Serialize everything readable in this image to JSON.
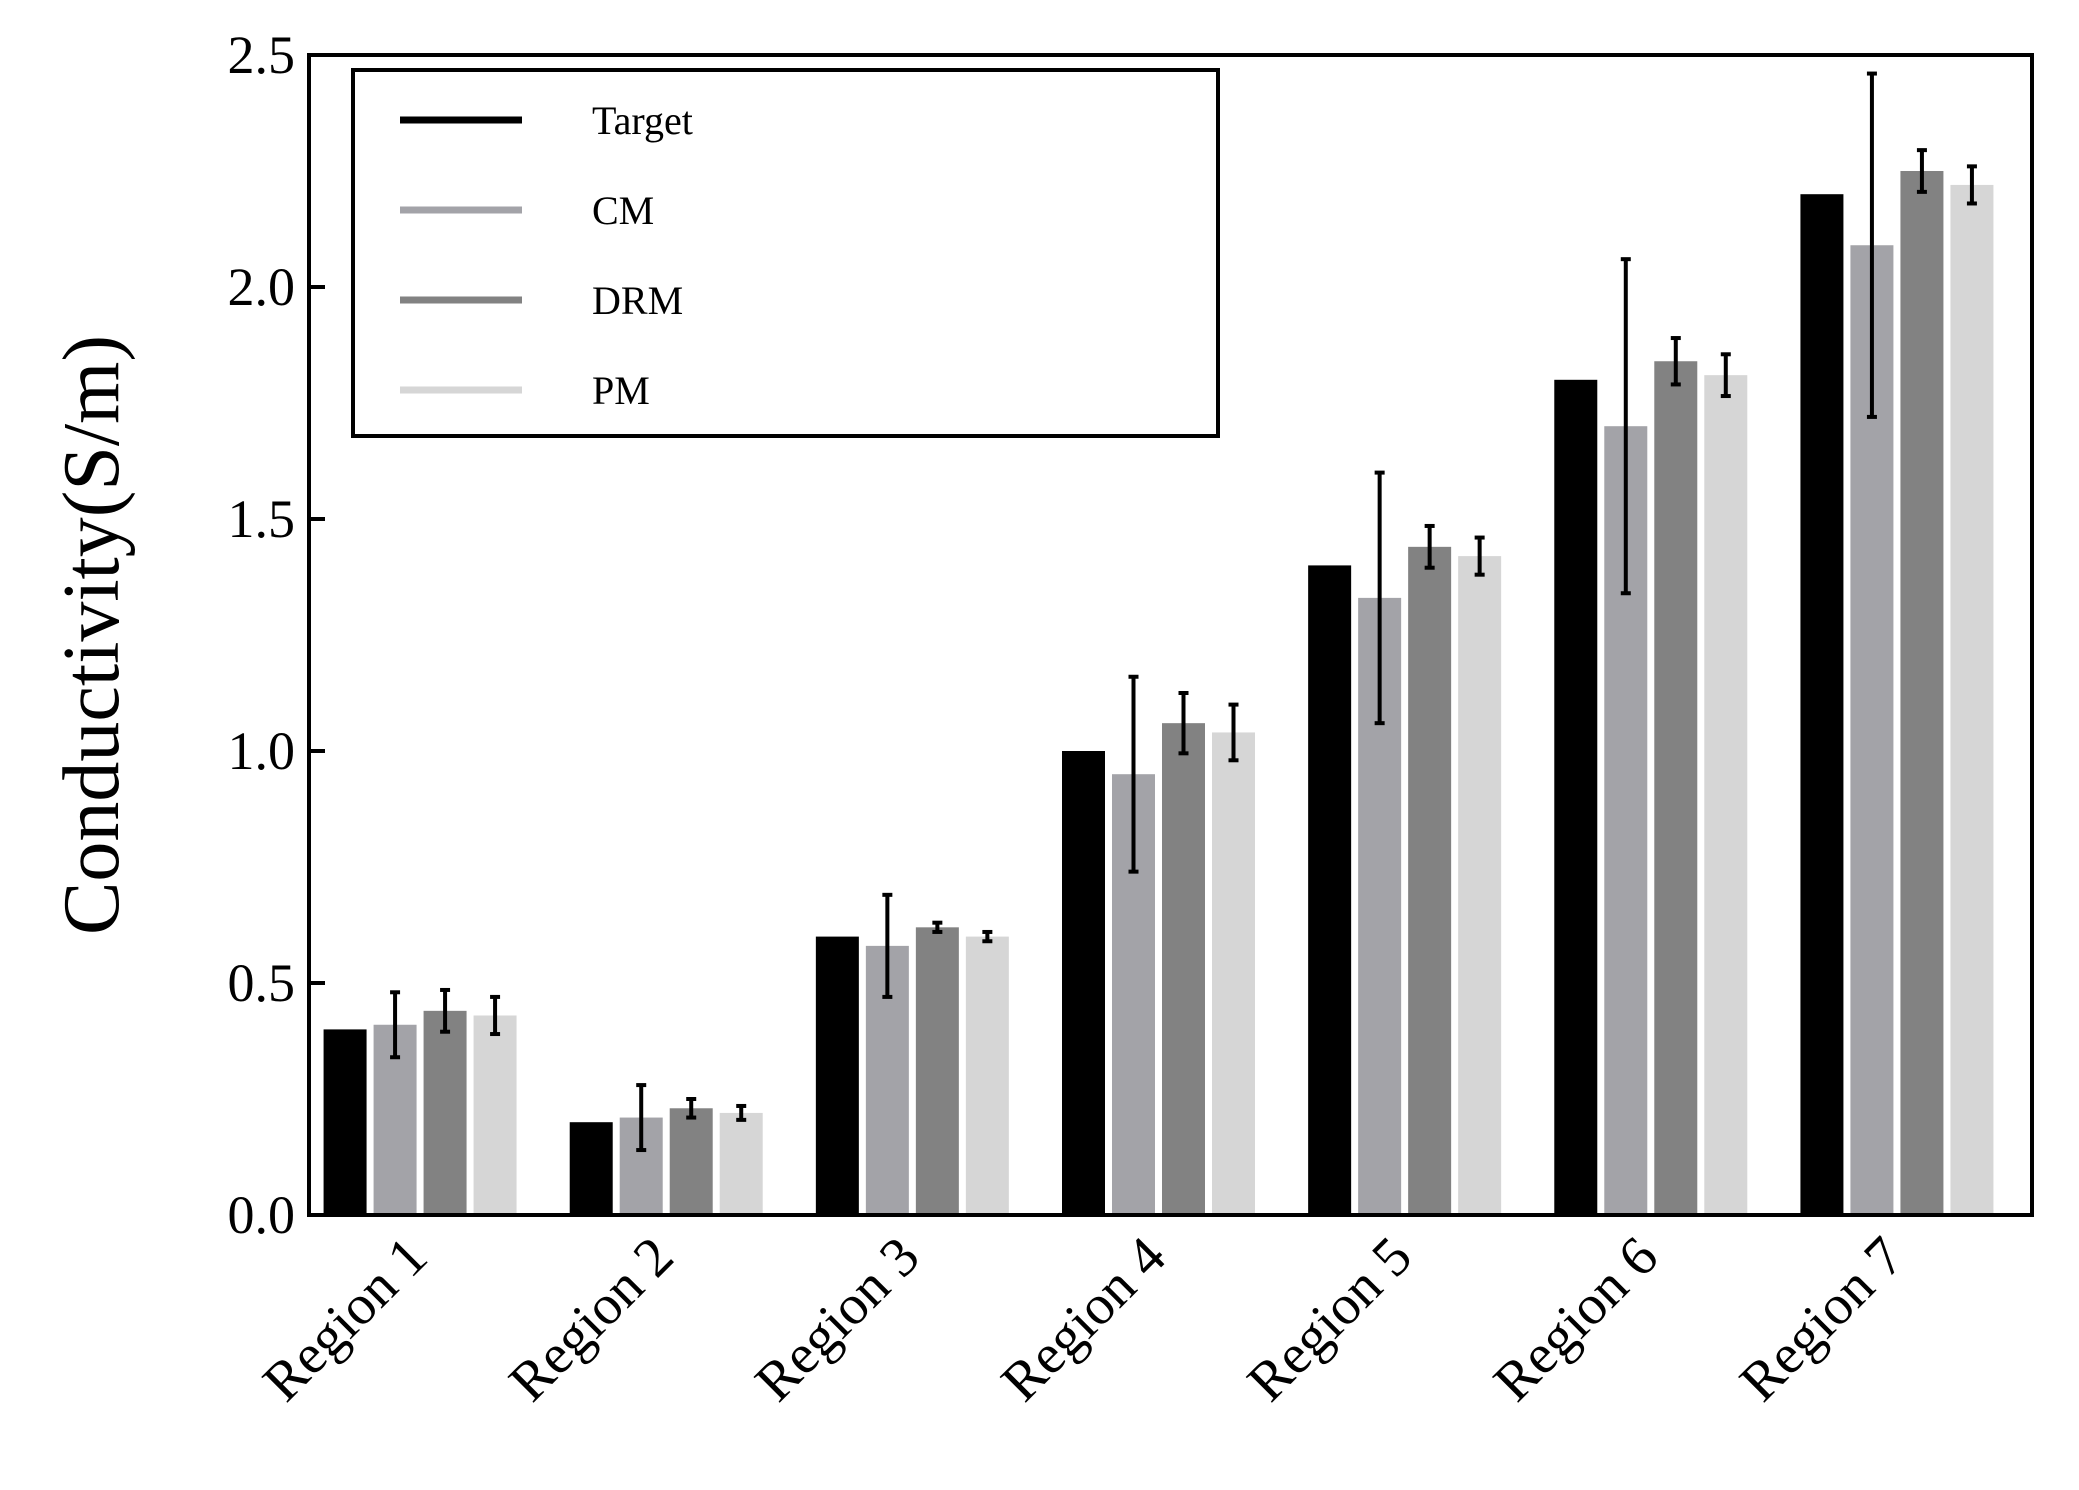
{
  "chart_data": {
    "type": "bar",
    "ylabel": "Conductivity(S/m)",
    "xlabel": "",
    "ylim": [
      0,
      2.5
    ],
    "yticks": [
      "0.0",
      "0.5",
      "1.0",
      "1.5",
      "2.0",
      "2.5"
    ],
    "categories": [
      "Region 1",
      "Region 2",
      "Region 3",
      "Region 4",
      "Region 5",
      "Region 6",
      "Region 7"
    ],
    "legend_position": "top-left",
    "grid": false,
    "series": [
      {
        "name": "Target",
        "color": "#000000",
        "values": [
          0.4,
          0.2,
          0.6,
          1.0,
          1.4,
          1.8,
          2.2
        ],
        "errors": [
          0,
          0,
          0,
          0,
          0,
          0,
          0
        ]
      },
      {
        "name": "CM",
        "color": "#a3a3a8",
        "values": [
          0.41,
          0.21,
          0.58,
          0.95,
          1.33,
          1.7,
          2.09
        ],
        "errors": [
          0.07,
          0.07,
          0.11,
          0.21,
          0.27,
          0.36,
          0.37
        ]
      },
      {
        "name": "DRM",
        "color": "#828282",
        "values": [
          0.44,
          0.23,
          0.62,
          1.06,
          1.44,
          1.84,
          2.25
        ],
        "errors": [
          0.045,
          0.02,
          0.01,
          0.065,
          0.045,
          0.05,
          0.045
        ]
      },
      {
        "name": "PM",
        "color": "#d6d6d6",
        "values": [
          0.43,
          0.22,
          0.6,
          1.04,
          1.42,
          1.81,
          2.22
        ],
        "errors": [
          0.04,
          0.015,
          0.01,
          0.06,
          0.04,
          0.045,
          0.04
        ]
      }
    ]
  }
}
